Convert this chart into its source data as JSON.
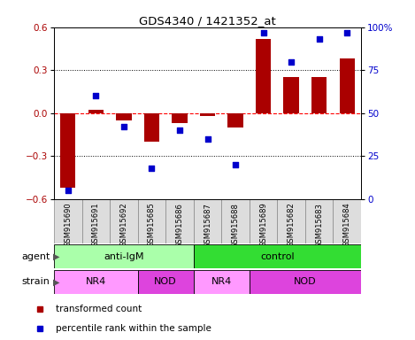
{
  "title": "GDS4340 / 1421352_at",
  "samples": [
    "GSM915690",
    "GSM915691",
    "GSM915692",
    "GSM915685",
    "GSM915686",
    "GSM915687",
    "GSM915688",
    "GSM915689",
    "GSM915682",
    "GSM915683",
    "GSM915684"
  ],
  "bar_values": [
    -0.52,
    0.02,
    -0.05,
    -0.2,
    -0.07,
    -0.02,
    -0.1,
    0.52,
    0.25,
    0.25,
    0.38
  ],
  "percentile_values": [
    5,
    60,
    42,
    18,
    40,
    35,
    20,
    97,
    80,
    93,
    97
  ],
  "bar_color": "#AA0000",
  "point_color": "#0000CC",
  "ylim": [
    -0.6,
    0.6
  ],
  "y2lim": [
    0,
    100
  ],
  "yticks": [
    -0.6,
    -0.3,
    0.0,
    0.3,
    0.6
  ],
  "y2ticks": [
    0,
    25,
    50,
    75,
    100
  ],
  "hlines_dotted": [
    -0.3,
    0.3
  ],
  "hline_dashed": 0.0,
  "agent_groups": [
    {
      "label": "anti-IgM",
      "start": 0,
      "end": 5,
      "color": "#AAFFAA"
    },
    {
      "label": "control",
      "start": 5,
      "end": 11,
      "color": "#33DD33"
    }
  ],
  "strain_groups": [
    {
      "label": "NR4",
      "start": 0,
      "end": 3,
      "color": "#FF99FF"
    },
    {
      "label": "NOD",
      "start": 3,
      "end": 5,
      "color": "#DD44DD"
    },
    {
      "label": "NR4",
      "start": 5,
      "end": 7,
      "color": "#FF99FF"
    },
    {
      "label": "NOD",
      "start": 7,
      "end": 11,
      "color": "#DD44DD"
    }
  ],
  "legend_items": [
    {
      "label": "transformed count",
      "color": "#AA0000"
    },
    {
      "label": "percentile rank within the sample",
      "color": "#0000CC"
    }
  ],
  "xtick_bg": "#DDDDDD",
  "xtick_border": "#888888",
  "main_bg": "#FFFFFF"
}
